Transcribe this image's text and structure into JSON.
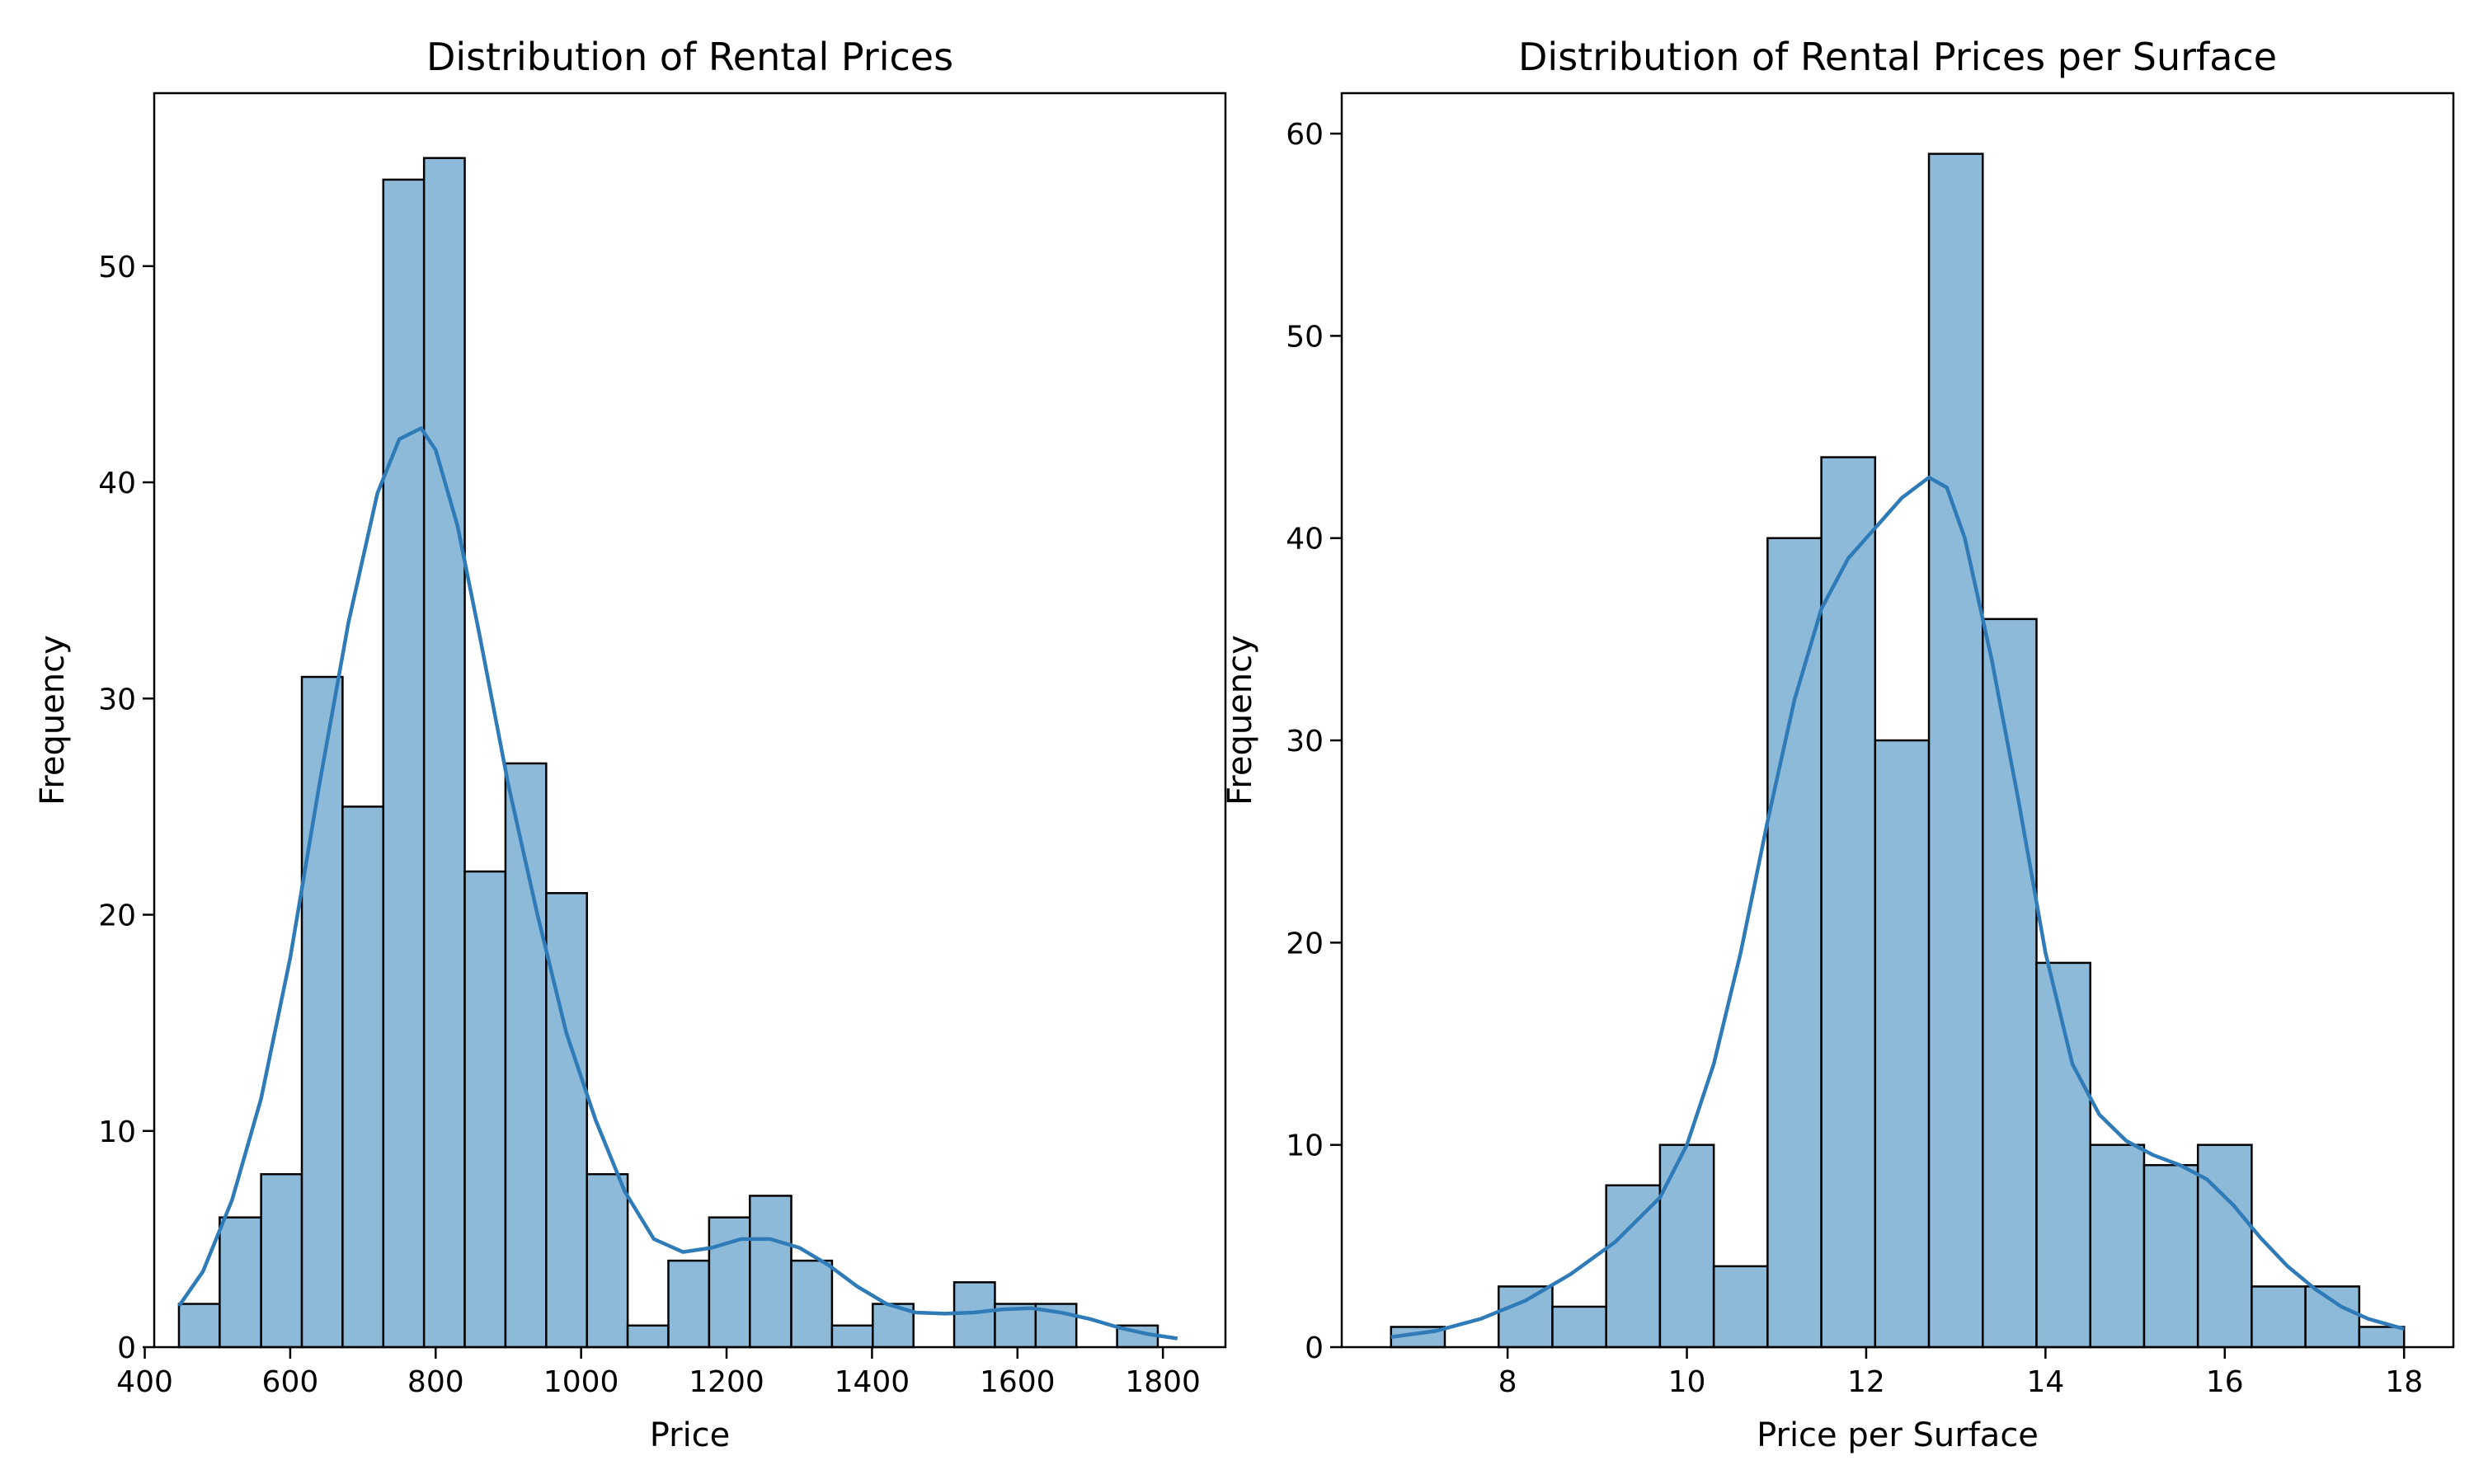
{
  "chart_data": [
    {
      "type": "bar",
      "title": "Distribution of Rental Prices",
      "xlabel": "Price",
      "ylabel": "Frequency",
      "xlim": [
        413,
        1886
      ],
      "ylim": [
        0,
        58
      ],
      "xticks": [
        400,
        600,
        800,
        1000,
        1200,
        1400,
        1600,
        1800
      ],
      "yticks": [
        0,
        10,
        20,
        30,
        40,
        50
      ],
      "bin_edges": [
        447,
        503,
        560,
        616,
        672,
        728,
        784,
        840,
        896,
        952,
        1008,
        1064,
        1120,
        1176,
        1232,
        1289,
        1345,
        1401,
        1457,
        1513,
        1569,
        1625,
        1681,
        1737,
        1793
      ],
      "values": [
        2,
        6,
        8,
        31,
        25,
        54,
        55,
        22,
        27,
        21,
        8,
        1,
        4,
        6,
        7,
        4,
        1,
        2,
        0,
        3,
        2,
        2,
        0,
        1
      ],
      "kde": {
        "x": [
          447,
          480,
          520,
          560,
          600,
          640,
          680,
          720,
          750,
          780,
          800,
          830,
          860,
          900,
          940,
          980,
          1020,
          1060,
          1100,
          1140,
          1180,
          1220,
          1260,
          1300,
          1340,
          1380,
          1420,
          1460,
          1500,
          1540,
          1580,
          1620,
          1660,
          1700,
          1740,
          1780,
          1820
        ],
        "y": [
          1.9,
          3.5,
          6.8,
          11.5,
          18,
          26,
          33.5,
          39.5,
          42,
          42.5,
          41.5,
          38,
          33,
          26,
          20,
          14.5,
          10.5,
          7.2,
          5,
          4.4,
          4.6,
          5.0,
          5.0,
          4.6,
          3.8,
          2.8,
          2.0,
          1.6,
          1.55,
          1.6,
          1.75,
          1.8,
          1.6,
          1.3,
          0.9,
          0.6,
          0.4
        ]
      },
      "bar_color": "#8ebad9",
      "edge_color": "#000000",
      "kde_color": "#2f7bb8"
    },
    {
      "type": "bar",
      "title": "Distribution of Rental Prices per Surface",
      "xlabel": "Price per Surface",
      "ylabel": "Frequency",
      "xlim": [
        6.15,
        18.55
      ],
      "ylim": [
        0,
        62
      ],
      "xticks": [
        8,
        10,
        12,
        14,
        16,
        18
      ],
      "yticks": [
        0,
        10,
        20,
        30,
        40,
        50,
        60
      ],
      "bin_edges": [
        6.7,
        7.3,
        7.9,
        8.5,
        9.1,
        9.7,
        10.3,
        10.9,
        11.5,
        12.1,
        12.7,
        13.3,
        13.9,
        14.5,
        15.1,
        15.7,
        16.3,
        16.9,
        17.5,
        18.0
      ],
      "values": [
        1,
        0,
        3,
        2,
        8,
        10,
        4,
        40,
        44,
        30,
        59,
        36,
        19,
        10,
        9,
        10,
        3,
        3,
        1
      ],
      "kde": {
        "x": [
          6.7,
          7.2,
          7.7,
          8.2,
          8.7,
          9.2,
          9.7,
          10.0,
          10.3,
          10.6,
          10.9,
          11.2,
          11.5,
          11.8,
          12.1,
          12.4,
          12.7,
          12.9,
          13.1,
          13.4,
          13.7,
          14.0,
          14.3,
          14.6,
          14.9,
          15.2,
          15.5,
          15.8,
          16.1,
          16.4,
          16.7,
          17.0,
          17.3,
          17.6,
          18.0
        ],
        "y": [
          0.5,
          0.8,
          1.4,
          2.3,
          3.6,
          5.2,
          7.4,
          10,
          14,
          19.5,
          26,
          32,
          36.5,
          39,
          40.5,
          42,
          43,
          42.5,
          40,
          34,
          27,
          19.5,
          14,
          11.5,
          10.2,
          9.5,
          9.0,
          8.3,
          7.0,
          5.4,
          4.0,
          2.9,
          2.0,
          1.4,
          0.9
        ]
      },
      "bar_color": "#8ebad9",
      "edge_color": "#000000",
      "kde_color": "#2f7bb8"
    }
  ]
}
